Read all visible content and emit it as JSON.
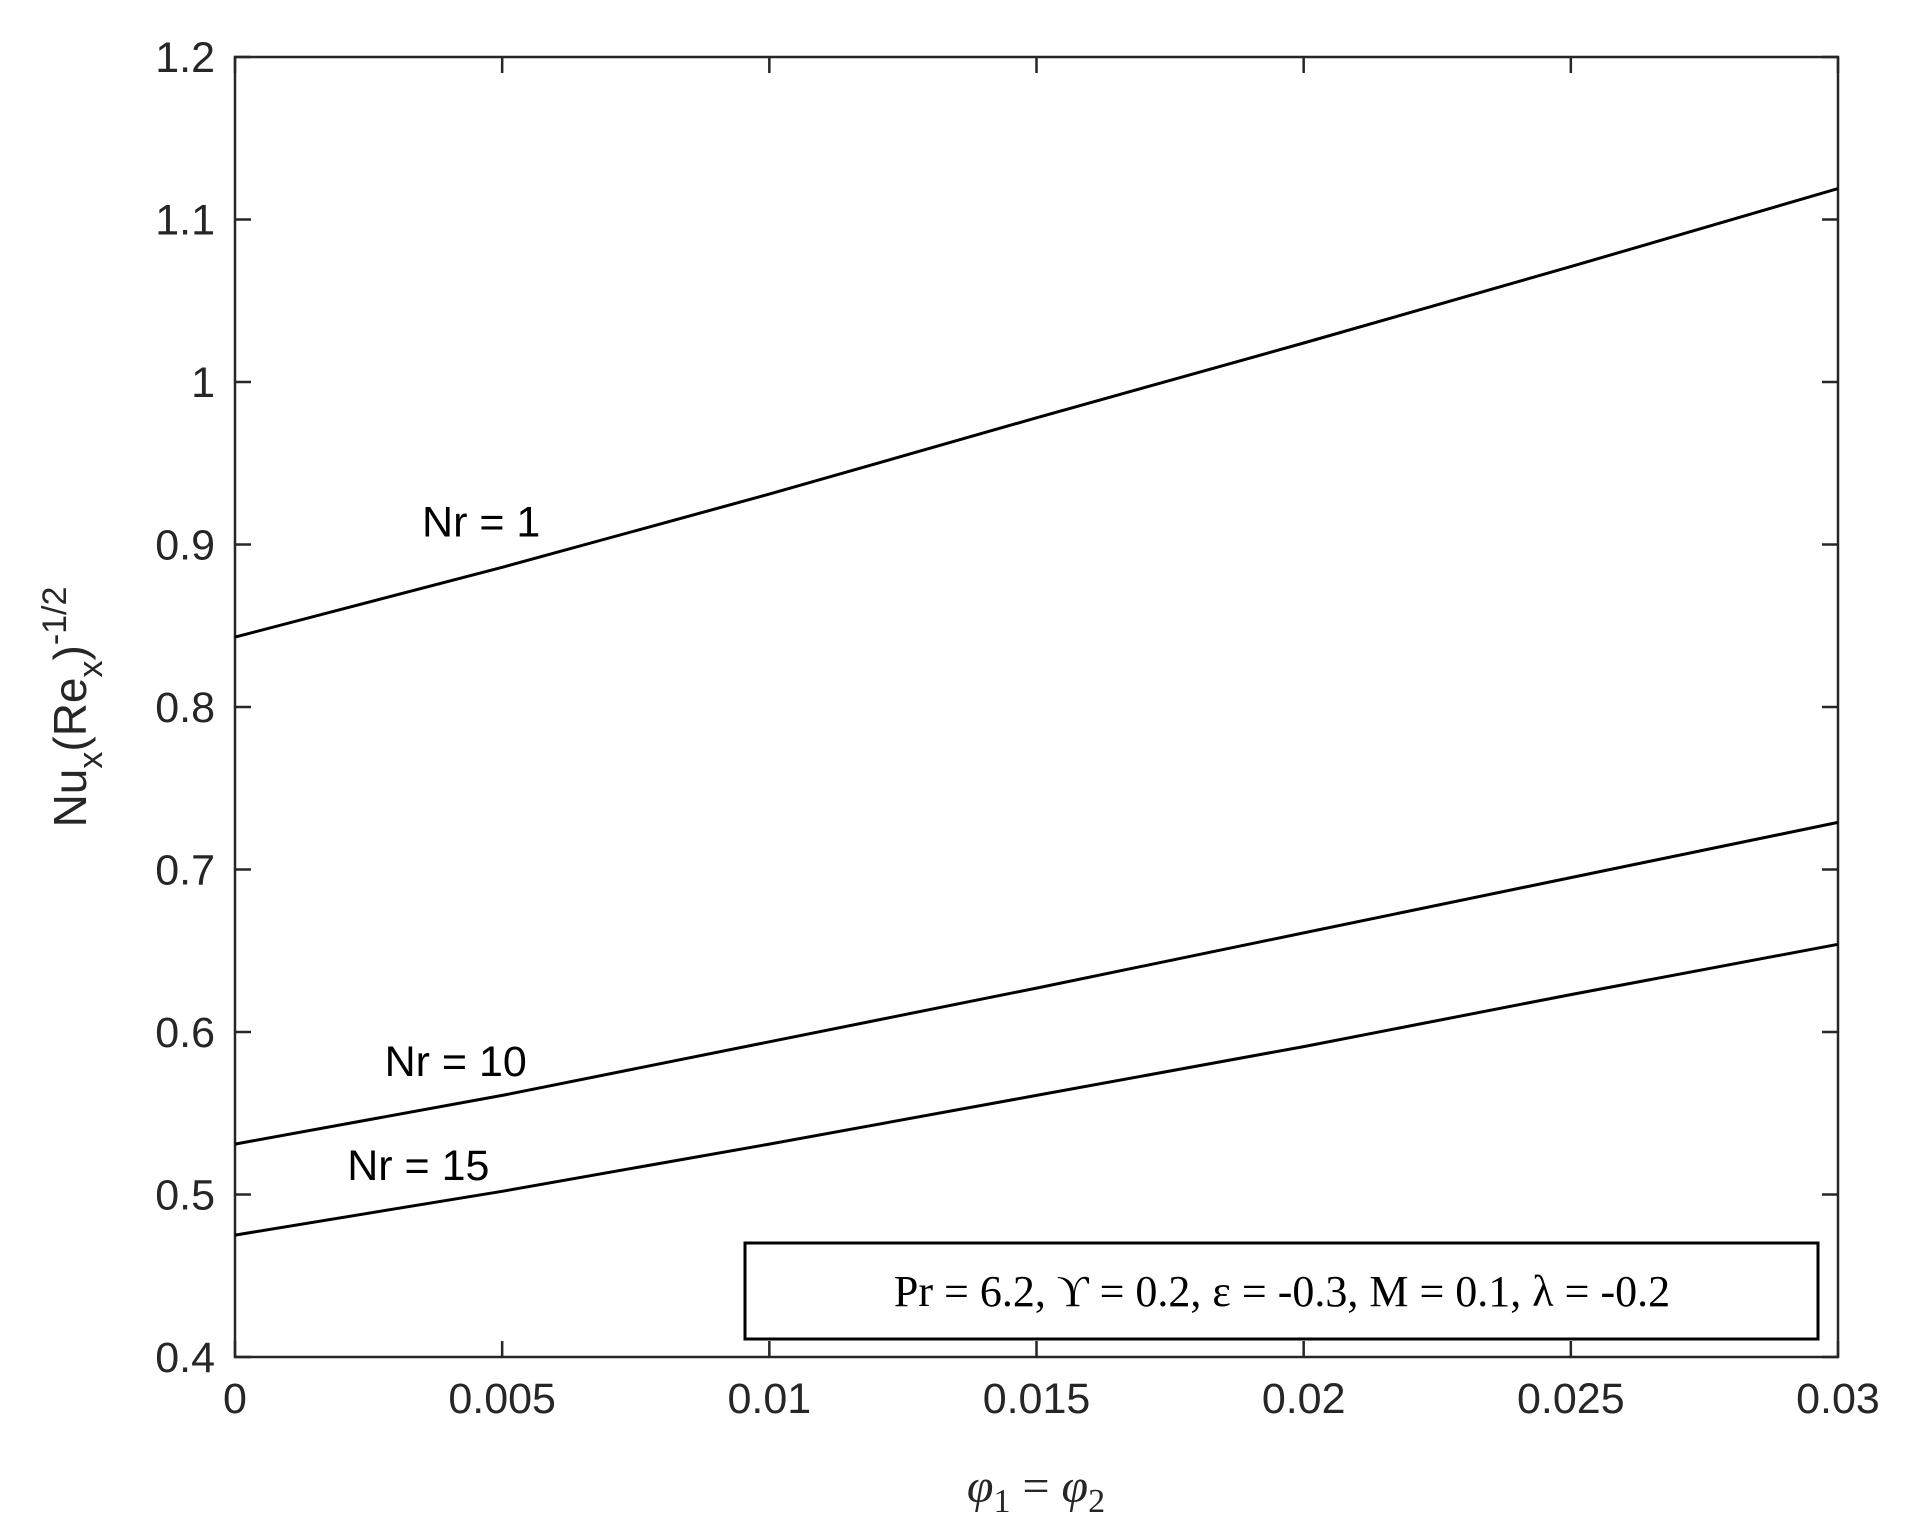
{
  "chart_data": {
    "type": "line",
    "xlabel": {
      "main": "φ",
      "sub1": "1",
      "eq": " = ",
      "main2": "φ",
      "sub2": "2"
    },
    "ylabel": {
      "a": "Nu",
      "a_sub": "x",
      "b": "(Re",
      "b_sub": "x",
      "c": ")",
      "sup": "-1/2"
    },
    "xlim": [
      0,
      0.03
    ],
    "ylim": [
      0.4,
      1.2
    ],
    "xticks": [
      0,
      0.005,
      0.01,
      0.015,
      0.02,
      0.025,
      0.03
    ],
    "xtick_labels": [
      "0",
      "0.005",
      "0.01",
      "0.015",
      "0.02",
      "0.025",
      "0.03"
    ],
    "yticks": [
      0.4,
      0.5,
      0.6,
      0.7,
      0.8,
      0.9,
      1.0,
      1.1,
      1.2
    ],
    "ytick_labels": [
      "0.4",
      "0.5",
      "0.6",
      "0.7",
      "0.8",
      "0.9",
      "1",
      "1.1",
      "1.2"
    ],
    "grid": false,
    "series": [
      {
        "name": "Nr = 1",
        "label_at": [
          0.0035,
          0.905
        ],
        "x": [
          0,
          0.005,
          0.01,
          0.015,
          0.02,
          0.025,
          0.03
        ],
        "y": [
          0.843,
          0.886,
          0.931,
          0.978,
          1.024,
          1.071,
          1.119
        ]
      },
      {
        "name": "Nr = 10",
        "label_at": [
          0.0028,
          0.573
        ],
        "x": [
          0,
          0.005,
          0.01,
          0.015,
          0.02,
          0.025,
          0.03
        ],
        "y": [
          0.531,
          0.561,
          0.594,
          0.627,
          0.661,
          0.695,
          0.729
        ]
      },
      {
        "name": "Nr = 15",
        "label_at": [
          0.0021,
          0.509
        ],
        "x": [
          0,
          0.005,
          0.01,
          0.015,
          0.02,
          0.025,
          0.03
        ],
        "y": [
          0.475,
          0.502,
          0.531,
          0.561,
          0.591,
          0.623,
          0.654
        ]
      }
    ],
    "annotation": "Pr = 6.2, ϒ = 0.2, ε = -0.3, M = 0.1, λ = -0.2"
  }
}
